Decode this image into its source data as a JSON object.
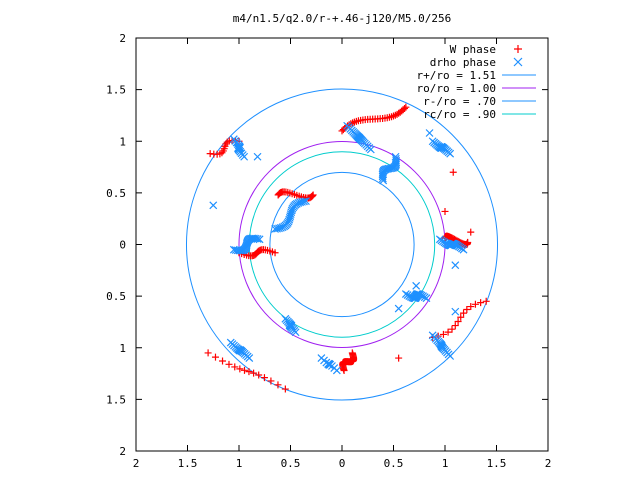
{
  "chart_data": {
    "type": "scatter",
    "title": "m4/n1.5/q2.0/r-+.46-j120/M5.0/256",
    "xlabel": "",
    "ylabel": "",
    "xlim": [
      -2,
      2
    ],
    "ylim": [
      -2,
      2
    ],
    "x_ticks": [
      -2,
      -1.5,
      -1,
      -0.5,
      0,
      0.5,
      1,
      1.5,
      2
    ],
    "y_ticks": [
      -2,
      -1.5,
      -1,
      -0.5,
      0,
      0.5,
      1,
      1.5,
      2
    ],
    "x_tick_labels": [
      "2",
      "1.5",
      "1",
      "0.5",
      "0",
      "0.5",
      "1",
      "1.5",
      "2"
    ],
    "y_tick_labels": [
      "2",
      "1.5",
      "1",
      "0.5",
      "0",
      "0.5",
      "1",
      "1.5",
      "2"
    ],
    "grid": false,
    "legend_position": "top-right",
    "series": [
      {
        "name": "W phase",
        "kind": "points",
        "marker": "plus",
        "color": "#ff0000",
        "clusters": [
          {
            "x0": 0.1,
            "y0": -1.05,
            "x1": 0.02,
            "y1": -1.22,
            "n": 34
          },
          {
            "x0": 0.62,
            "y0": 1.33,
            "x1": 0.0,
            "y1": 1.1,
            "n": 34
          },
          {
            "x0": 1.22,
            "y0": 0.02,
            "x1": 1.0,
            "y1": 0.06,
            "n": 34
          },
          {
            "x0": -0.28,
            "y0": 0.48,
            "x1": -0.62,
            "y1": 0.48,
            "n": 24
          },
          {
            "x0": -1.28,
            "y0": 0.88,
            "x1": -1.0,
            "y1": 1.0,
            "n": 14
          },
          {
            "x0": -1.3,
            "y0": -1.05,
            "x1": -0.55,
            "y1": -1.4,
            "n": 14
          },
          {
            "x0": -1.0,
            "y0": -0.08,
            "x1": -0.65,
            "y1": -0.08,
            "n": 22
          },
          {
            "x0": 0.88,
            "y0": -0.9,
            "x1": 1.4,
            "y1": -0.55,
            "n": 14
          }
        ],
        "extra_points": [
          [
            1.0,
            0.32
          ],
          [
            1.08,
            0.7
          ],
          [
            0.55,
            -1.1
          ],
          [
            1.25,
            0.12
          ]
        ]
      },
      {
        "name": "drho phase",
        "kind": "points",
        "marker": "cross",
        "color": "#1e90ff",
        "clusters": [
          {
            "x0": 0.05,
            "y0": 1.15,
            "x1": 0.28,
            "y1": 0.92,
            "n": 28
          },
          {
            "x0": 0.88,
            "y0": 1.0,
            "x1": 1.05,
            "y1": 0.88,
            "n": 26
          },
          {
            "x0": 0.95,
            "y0": 0.05,
            "x1": 1.18,
            "y1": -0.05,
            "n": 28
          },
          {
            "x0": 0.62,
            "y0": -0.48,
            "x1": 0.82,
            "y1": -0.52,
            "n": 24
          },
          {
            "x0": -0.55,
            "y0": -0.72,
            "x1": -0.45,
            "y1": -0.85,
            "n": 24
          },
          {
            "x0": -1.08,
            "y0": -0.95,
            "x1": -0.9,
            "y1": -1.1,
            "n": 24
          },
          {
            "x0": -1.05,
            "y0": -0.05,
            "x1": -0.8,
            "y1": 0.05,
            "n": 24
          },
          {
            "x0": -1.05,
            "y0": 1.02,
            "x1": -0.95,
            "y1": 0.85,
            "n": 22
          },
          {
            "x0": -0.65,
            "y0": 0.15,
            "x1": -0.35,
            "y1": 0.42,
            "n": 26
          },
          {
            "x0": 0.52,
            "y0": 0.85,
            "x1": 0.4,
            "y1": 0.62,
            "n": 22
          },
          {
            "x0": 0.88,
            "y0": -0.88,
            "x1": 1.05,
            "y1": -1.08,
            "n": 24
          },
          {
            "x0": -0.2,
            "y0": -1.1,
            "x1": -0.05,
            "y1": -1.22,
            "n": 14
          }
        ],
        "extra_points": [
          [
            0.55,
            -0.62
          ],
          [
            0.72,
            -0.4
          ],
          [
            1.1,
            -0.65
          ],
          [
            1.1,
            -0.2
          ],
          [
            -1.25,
            0.38
          ],
          [
            -0.82,
            0.85
          ],
          [
            0.85,
            1.08
          ]
        ]
      },
      {
        "name": "r+/ro = 1.51",
        "kind": "circle",
        "radius": 1.51,
        "color": "#1e90ff"
      },
      {
        "name": "ro/ro = 1.00",
        "kind": "circle",
        "radius": 1.0,
        "color": "#a020f0"
      },
      {
        "name": "r-/ro = .70",
        "kind": "circle",
        "radius": 0.7,
        "color": "#1e90ff"
      },
      {
        "name": "rc/ro = .90",
        "kind": "circle",
        "radius": 0.9,
        "color": "#00cccc"
      }
    ]
  }
}
